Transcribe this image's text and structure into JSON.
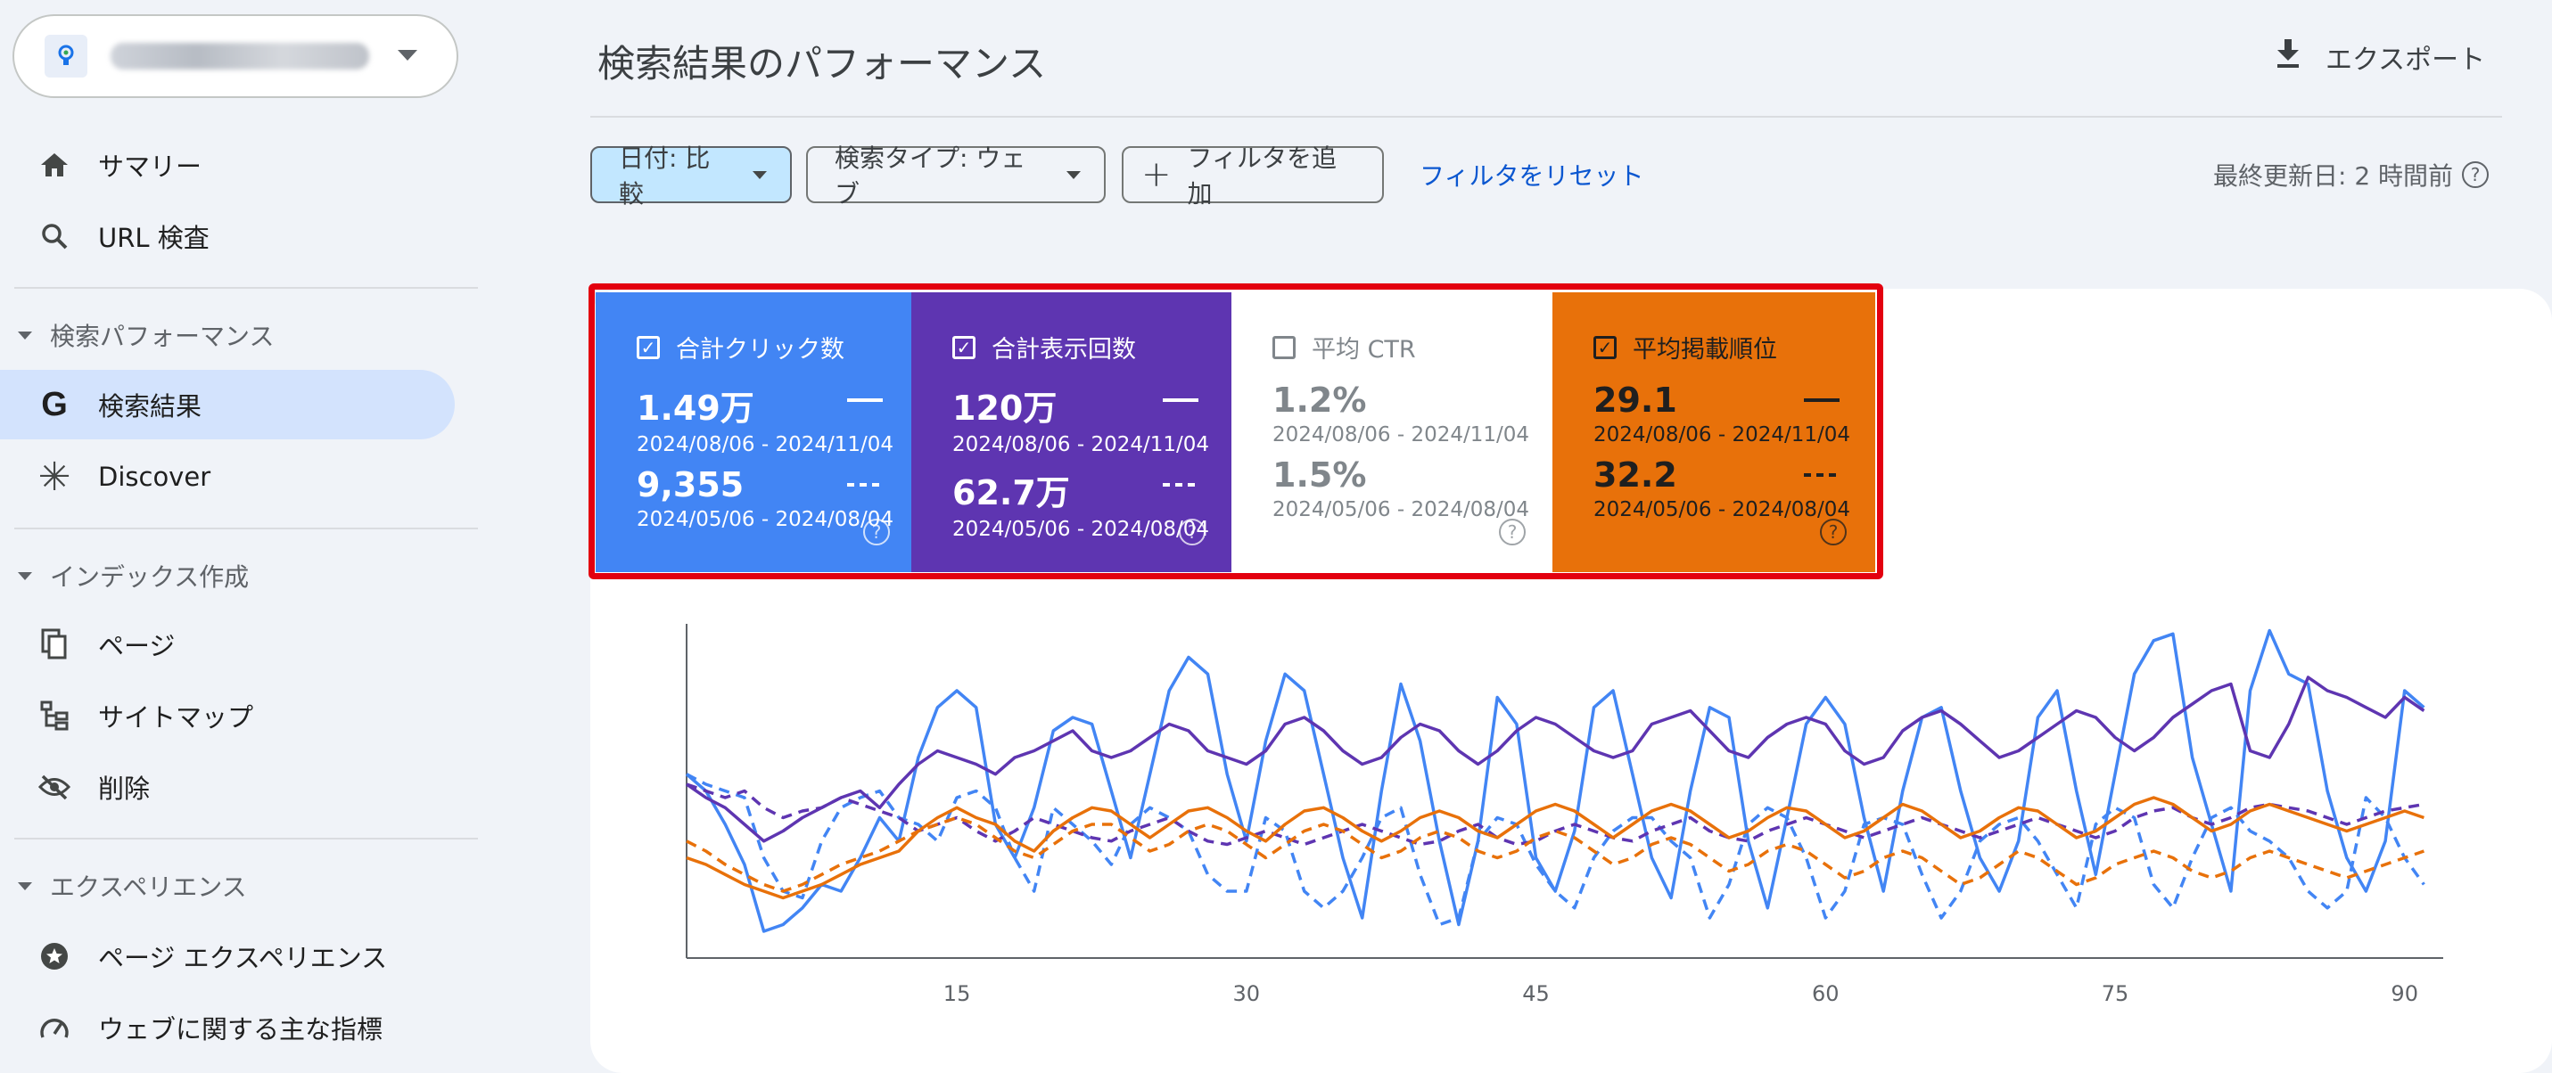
{
  "sidebar": {
    "items": {
      "summary": "サマリー",
      "url_inspection": "URL 検査",
      "search_results": "検索結果",
      "discover": "Discover",
      "pages": "ページ",
      "sitemaps": "サイトマップ",
      "removals": "削除",
      "page_experience": "ページ エクスペリエンス",
      "core_web_vitals": "ウェブに関する主な指標"
    },
    "sections": {
      "performance": "検索パフォーマンス",
      "indexing": "インデックス作成",
      "experience": "エクスペリエンス"
    }
  },
  "header": {
    "title": "検索結果のパフォーマンス",
    "export": "エクスポート"
  },
  "filters": {
    "date": "日付: 比較",
    "search_type": "検索タイプ: ウェブ",
    "add_filter": "フィルタを追加",
    "reset": "フィルタをリセット",
    "last_updated": "最終更新日: 2 時間前"
  },
  "metrics": {
    "clicks": {
      "label": "合計クリック数",
      "checked": true,
      "value1": "1.49万",
      "dates1": "2024/08/06 - 2024/11/04",
      "value2": "9,355",
      "dates2": "2024/05/06 - 2024/08/04"
    },
    "impressions": {
      "label": "合計表示回数",
      "checked": true,
      "value1": "120万",
      "dates1": "2024/08/06 - 2024/11/04",
      "value2": "62.7万",
      "dates2": "2024/05/06 - 2024/08/04"
    },
    "ctr": {
      "label": "平均 CTR",
      "checked": false,
      "value1": "1.2%",
      "dates1": "2024/08/06 - 2024/11/04",
      "value2": "1.5%",
      "dates2": "2024/05/06 - 2024/08/04"
    },
    "position": {
      "label": "平均掲載順位",
      "checked": true,
      "value1": "29.1",
      "dates1": "2024/08/06 - 2024/11/04",
      "value2": "32.2",
      "dates2": "2024/05/06 - 2024/08/04"
    }
  },
  "colors": {
    "clicks": "#4285f4",
    "impressions": "#5e35b1",
    "position": "#e8710a",
    "highlight": "#e3000f"
  },
  "chart_data": {
    "type": "line",
    "x_ticks": [
      15,
      30,
      45,
      60,
      75,
      90
    ],
    "x_range": [
      1,
      92
    ],
    "grid": false,
    "series": [
      {
        "metric": "clicks",
        "style": "solid",
        "values": [
          0.55,
          0.5,
          0.4,
          0.28,
          0.08,
          0.1,
          0.15,
          0.22,
          0.2,
          0.3,
          0.42,
          0.35,
          0.6,
          0.75,
          0.8,
          0.75,
          0.4,
          0.3,
          0.45,
          0.68,
          0.72,
          0.7,
          0.5,
          0.3,
          0.55,
          0.8,
          0.9,
          0.85,
          0.55,
          0.35,
          0.65,
          0.85,
          0.8,
          0.55,
          0.3,
          0.12,
          0.5,
          0.82,
          0.65,
          0.35,
          0.1,
          0.35,
          0.78,
          0.7,
          0.3,
          0.2,
          0.38,
          0.75,
          0.8,
          0.55,
          0.3,
          0.18,
          0.5,
          0.75,
          0.72,
          0.35,
          0.15,
          0.42,
          0.7,
          0.78,
          0.7,
          0.42,
          0.2,
          0.5,
          0.72,
          0.75,
          0.5,
          0.3,
          0.2,
          0.35,
          0.72,
          0.8,
          0.5,
          0.25,
          0.55,
          0.85,
          0.95,
          0.97,
          0.6,
          0.4,
          0.2,
          0.8,
          0.98,
          0.85,
          0.82,
          0.5,
          0.3,
          0.2,
          0.35,
          0.8,
          0.75
        ]
      },
      {
        "metric": "clicks",
        "style": "dashed",
        "values": [
          0.55,
          0.52,
          0.5,
          0.48,
          0.3,
          0.2,
          0.18,
          0.35,
          0.45,
          0.48,
          0.5,
          0.42,
          0.4,
          0.35,
          0.48,
          0.5,
          0.45,
          0.3,
          0.2,
          0.45,
          0.4,
          0.35,
          0.28,
          0.4,
          0.45,
          0.42,
          0.38,
          0.25,
          0.2,
          0.2,
          0.42,
          0.38,
          0.2,
          0.15,
          0.2,
          0.3,
          0.42,
          0.45,
          0.25,
          0.1,
          0.12,
          0.35,
          0.42,
          0.4,
          0.28,
          0.2,
          0.15,
          0.3,
          0.38,
          0.42,
          0.42,
          0.35,
          0.3,
          0.12,
          0.22,
          0.4,
          0.45,
          0.42,
          0.3,
          0.12,
          0.2,
          0.4,
          0.42,
          0.4,
          0.25,
          0.12,
          0.2,
          0.35,
          0.4,
          0.42,
          0.35,
          0.25,
          0.15,
          0.4,
          0.45,
          0.42,
          0.22,
          0.15,
          0.3,
          0.42,
          0.45,
          0.38,
          0.35,
          0.3,
          0.2,
          0.15,
          0.2,
          0.48,
          0.42,
          0.3,
          0.22
        ]
      },
      {
        "metric": "impressions",
        "style": "solid",
        "values": [
          0.52,
          0.48,
          0.45,
          0.4,
          0.35,
          0.38,
          0.42,
          0.45,
          0.48,
          0.5,
          0.45,
          0.52,
          0.58,
          0.62,
          0.6,
          0.58,
          0.55,
          0.6,
          0.62,
          0.65,
          0.68,
          0.62,
          0.6,
          0.62,
          0.66,
          0.7,
          0.68,
          0.62,
          0.6,
          0.58,
          0.62,
          0.7,
          0.72,
          0.68,
          0.62,
          0.58,
          0.6,
          0.66,
          0.7,
          0.68,
          0.62,
          0.58,
          0.62,
          0.68,
          0.72,
          0.7,
          0.66,
          0.62,
          0.6,
          0.62,
          0.7,
          0.72,
          0.74,
          0.68,
          0.62,
          0.6,
          0.66,
          0.7,
          0.72,
          0.7,
          0.62,
          0.58,
          0.6,
          0.68,
          0.72,
          0.74,
          0.7,
          0.65,
          0.6,
          0.62,
          0.66,
          0.7,
          0.74,
          0.72,
          0.66,
          0.62,
          0.66,
          0.72,
          0.76,
          0.8,
          0.82,
          0.62,
          0.6,
          0.7,
          0.84,
          0.8,
          0.78,
          0.75,
          0.72,
          0.78,
          0.74
        ]
      },
      {
        "metric": "impressions",
        "style": "dashed",
        "values": [
          0.52,
          0.5,
          0.48,
          0.5,
          0.45,
          0.42,
          0.44,
          0.45,
          0.48,
          0.46,
          0.44,
          0.42,
          0.38,
          0.4,
          0.42,
          0.38,
          0.35,
          0.38,
          0.42,
          0.4,
          0.38,
          0.36,
          0.35,
          0.38,
          0.4,
          0.42,
          0.38,
          0.35,
          0.34,
          0.36,
          0.38,
          0.36,
          0.34,
          0.36,
          0.38,
          0.4,
          0.38,
          0.36,
          0.34,
          0.35,
          0.38,
          0.4,
          0.36,
          0.34,
          0.35,
          0.38,
          0.4,
          0.38,
          0.36,
          0.35,
          0.38,
          0.4,
          0.42,
          0.38,
          0.36,
          0.35,
          0.38,
          0.4,
          0.42,
          0.4,
          0.38,
          0.36,
          0.38,
          0.4,
          0.42,
          0.4,
          0.38,
          0.36,
          0.38,
          0.4,
          0.42,
          0.4,
          0.38,
          0.36,
          0.38,
          0.42,
          0.44,
          0.45,
          0.42,
          0.4,
          0.42,
          0.45,
          0.46,
          0.45,
          0.44,
          0.42,
          0.4,
          0.42,
          0.44,
          0.45,
          0.46
        ]
      },
      {
        "metric": "position",
        "style": "solid",
        "values": [
          0.3,
          0.28,
          0.25,
          0.22,
          0.2,
          0.18,
          0.2,
          0.22,
          0.25,
          0.28,
          0.3,
          0.32,
          0.38,
          0.42,
          0.45,
          0.42,
          0.4,
          0.35,
          0.32,
          0.38,
          0.42,
          0.45,
          0.44,
          0.4,
          0.36,
          0.4,
          0.44,
          0.45,
          0.42,
          0.38,
          0.35,
          0.4,
          0.44,
          0.45,
          0.42,
          0.38,
          0.35,
          0.38,
          0.42,
          0.44,
          0.42,
          0.38,
          0.36,
          0.4,
          0.44,
          0.46,
          0.44,
          0.4,
          0.36,
          0.4,
          0.44,
          0.46,
          0.44,
          0.4,
          0.36,
          0.38,
          0.42,
          0.45,
          0.44,
          0.4,
          0.36,
          0.38,
          0.42,
          0.46,
          0.44,
          0.4,
          0.36,
          0.38,
          0.42,
          0.45,
          0.44,
          0.4,
          0.36,
          0.38,
          0.42,
          0.46,
          0.48,
          0.46,
          0.42,
          0.38,
          0.4,
          0.44,
          0.46,
          0.44,
          0.42,
          0.4,
          0.38,
          0.4,
          0.42,
          0.44,
          0.42
        ]
      },
      {
        "metric": "position",
        "style": "dashed",
        "values": [
          0.35,
          0.32,
          0.28,
          0.25,
          0.22,
          0.2,
          0.22,
          0.25,
          0.28,
          0.3,
          0.32,
          0.35,
          0.38,
          0.4,
          0.42,
          0.4,
          0.36,
          0.32,
          0.3,
          0.34,
          0.38,
          0.4,
          0.4,
          0.36,
          0.32,
          0.34,
          0.38,
          0.4,
          0.38,
          0.34,
          0.3,
          0.34,
          0.38,
          0.4,
          0.38,
          0.34,
          0.3,
          0.32,
          0.36,
          0.38,
          0.36,
          0.32,
          0.3,
          0.32,
          0.36,
          0.38,
          0.36,
          0.32,
          0.28,
          0.3,
          0.34,
          0.36,
          0.34,
          0.3,
          0.26,
          0.28,
          0.32,
          0.34,
          0.32,
          0.28,
          0.24,
          0.26,
          0.3,
          0.32,
          0.3,
          0.26,
          0.22,
          0.24,
          0.28,
          0.32,
          0.3,
          0.26,
          0.22,
          0.24,
          0.28,
          0.3,
          0.32,
          0.3,
          0.26,
          0.24,
          0.26,
          0.3,
          0.32,
          0.3,
          0.28,
          0.26,
          0.24,
          0.26,
          0.28,
          0.3,
          0.32
        ]
      }
    ]
  }
}
